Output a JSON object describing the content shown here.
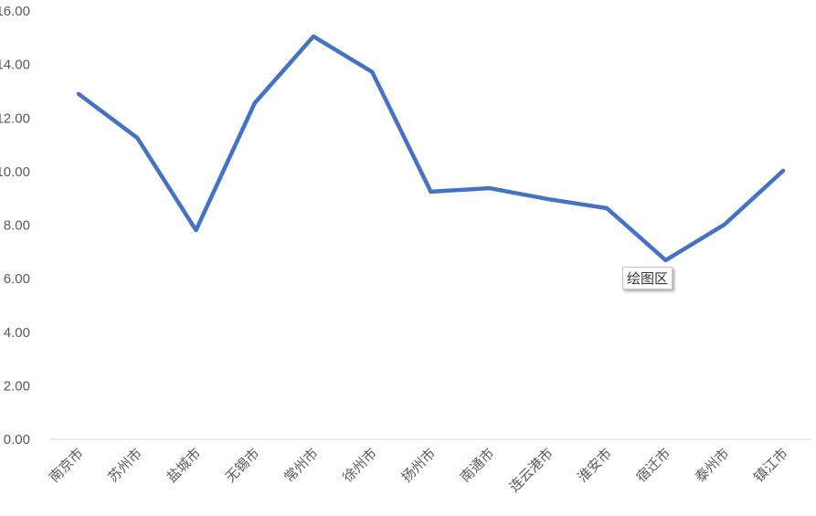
{
  "chart_data": {
    "type": "line",
    "title": "",
    "xlabel": "",
    "ylabel": "",
    "categories": [
      "南京市",
      "苏州市",
      "盐城市",
      "无锡市",
      "常州市",
      "徐州市",
      "扬州市",
      "南通市",
      "连云港市",
      "淮安市",
      "宿迁市",
      "泰州市",
      "镇江市"
    ],
    "series": [
      {
        "values": [
          12.9,
          11.26,
          7.81,
          12.56,
          15.05,
          13.72,
          9.25,
          9.38,
          8.97,
          8.63,
          6.69,
          8.02,
          10.03
        ],
        "color": "#4472C4"
      }
    ],
    "yticks": [
      "0.00",
      "2.00",
      "4.00",
      "6.00",
      "8.00",
      "10.00",
      "12.00",
      "14.00",
      "16.00"
    ],
    "ylim": [
      0,
      16
    ],
    "grid": false,
    "legend": "none"
  },
  "tooltip": "绘图区"
}
